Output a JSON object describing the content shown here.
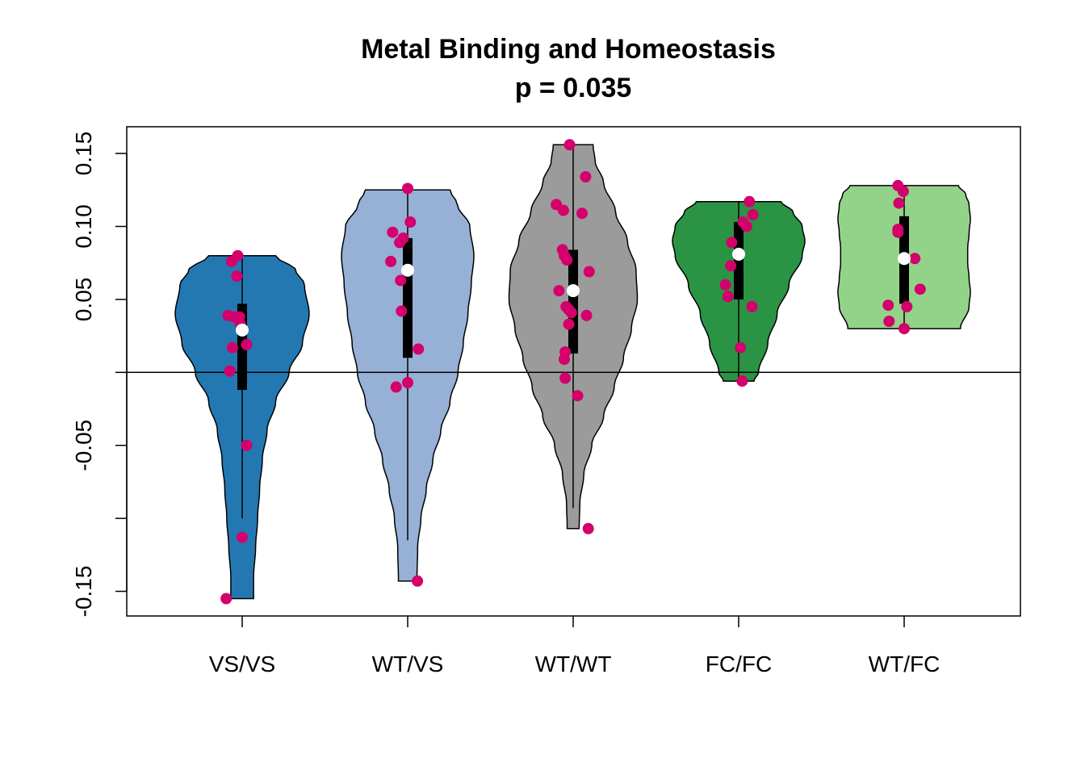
{
  "chart_data": {
    "type": "violin",
    "title": "Metal Binding and Homeostasis",
    "subtitle": "p = 0.035",
    "xlabel": "",
    "ylabel": "",
    "ylim": [
      -0.167,
      0.168
    ],
    "yticks": [
      0.15,
      0.1,
      0.05,
      0.0,
      -0.05,
      -0.1,
      -0.15
    ],
    "ytick_labels": [
      "0.15",
      "0.10",
      "0.05",
      "",
      "-0.05",
      "",
      "-0.15"
    ],
    "reference_line": 0.0,
    "grid": false,
    "point_color": "#d4006b",
    "median_marker_color": "#ffffff",
    "categories": [
      "VS/VS",
      "WT/VS",
      "WT/WT",
      "FC/FC",
      "WT/FC"
    ],
    "groups": [
      {
        "label": "VS/VS",
        "color": "#2478b2",
        "range": [
          -0.155,
          0.08
        ],
        "box": {
          "q1": -0.012,
          "median": 0.029,
          "q3": 0.047,
          "whisker_low": -0.1,
          "whisker_high": 0.08
        },
        "points": [
          [
            -0.005,
            0.08
          ],
          [
            -0.012,
            0.076
          ],
          [
            -0.006,
            0.066
          ],
          [
            -0.016,
            0.039
          ],
          [
            -0.009,
            0.038
          ],
          [
            -0.003,
            0.038
          ],
          [
            -0.002,
            0.033
          ],
          [
            -0.011,
            0.017
          ],
          [
            0.005,
            0.019
          ],
          [
            -0.014,
            0.001
          ],
          [
            0.005,
            -0.05
          ],
          [
            0.0,
            -0.113
          ],
          [
            -0.018,
            -0.155
          ]
        ],
        "density": [
          [
            -0.155,
            0.17
          ],
          [
            -0.14,
            0.17
          ],
          [
            -0.12,
            0.2
          ],
          [
            -0.1,
            0.23
          ],
          [
            -0.08,
            0.26
          ],
          [
            -0.06,
            0.3
          ],
          [
            -0.04,
            0.37
          ],
          [
            -0.02,
            0.5
          ],
          [
            0.0,
            0.7
          ],
          [
            0.02,
            0.9
          ],
          [
            0.04,
            1.0
          ],
          [
            0.06,
            0.93
          ],
          [
            0.07,
            0.8
          ],
          [
            0.08,
            0.5
          ]
        ]
      },
      {
        "label": "WT/VS",
        "color": "#96b0d6",
        "range": [
          -0.143,
          0.125
        ],
        "box": {
          "q1": 0.01,
          "median": 0.07,
          "q3": 0.092,
          "whisker_low": -0.115,
          "whisker_high": 0.125
        },
        "points": [
          [
            0.0,
            0.126
          ],
          [
            0.003,
            0.103
          ],
          [
            -0.017,
            0.096
          ],
          [
            -0.005,
            0.092
          ],
          [
            -0.009,
            0.089
          ],
          [
            -0.019,
            0.076
          ],
          [
            -0.008,
            0.063
          ],
          [
            -0.007,
            0.042
          ],
          [
            0.012,
            0.016
          ],
          [
            0.0,
            -0.007
          ],
          [
            -0.013,
            -0.01
          ],
          [
            0.011,
            -0.143
          ]
        ],
        "density": [
          [
            -0.143,
            0.14
          ],
          [
            -0.12,
            0.15
          ],
          [
            -0.1,
            0.2
          ],
          [
            -0.08,
            0.28
          ],
          [
            -0.06,
            0.38
          ],
          [
            -0.04,
            0.5
          ],
          [
            -0.02,
            0.64
          ],
          [
            0.0,
            0.76
          ],
          [
            0.02,
            0.84
          ],
          [
            0.04,
            0.91
          ],
          [
            0.06,
            0.96
          ],
          [
            0.08,
            1.0
          ],
          [
            0.1,
            0.94
          ],
          [
            0.115,
            0.75
          ],
          [
            0.125,
            0.64
          ]
        ]
      },
      {
        "label": "WT/WT",
        "color": "#9b9b9b",
        "range": [
          -0.107,
          0.156
        ],
        "box": {
          "q1": 0.013,
          "median": 0.056,
          "q3": 0.084,
          "whisker_low": -0.093,
          "whisker_high": 0.156
        },
        "points": [
          [
            -0.004,
            0.156
          ],
          [
            0.014,
            0.134
          ],
          [
            -0.019,
            0.115
          ],
          [
            -0.011,
            0.111
          ],
          [
            0.01,
            0.109
          ],
          [
            -0.012,
            0.084
          ],
          [
            -0.01,
            0.08
          ],
          [
            -0.007,
            0.077
          ],
          [
            0.018,
            0.069
          ],
          [
            -0.016,
            0.056
          ],
          [
            -0.008,
            0.045
          ],
          [
            -0.002,
            0.041
          ],
          [
            0.015,
            0.039
          ],
          [
            -0.005,
            0.043
          ],
          [
            -0.005,
            0.033
          ],
          [
            -0.009,
            0.014
          ],
          [
            -0.01,
            0.009
          ],
          [
            -0.009,
            -0.004
          ],
          [
            0.005,
            -0.016
          ],
          [
            0.017,
            -0.107
          ]
        ],
        "density": [
          [
            -0.107,
            0.09
          ],
          [
            -0.09,
            0.1
          ],
          [
            -0.07,
            0.16
          ],
          [
            -0.05,
            0.28
          ],
          [
            -0.03,
            0.46
          ],
          [
            -0.01,
            0.62
          ],
          [
            0.01,
            0.76
          ],
          [
            0.03,
            0.88
          ],
          [
            0.05,
            0.97
          ],
          [
            0.07,
            0.95
          ],
          [
            0.09,
            0.82
          ],
          [
            0.11,
            0.64
          ],
          [
            0.13,
            0.46
          ],
          [
            0.145,
            0.33
          ],
          [
            0.156,
            0.3
          ]
        ]
      },
      {
        "label": "FC/FC",
        "color": "#2a9444",
        "range": [
          -0.006,
          0.117
        ],
        "box": {
          "q1": 0.05,
          "median": 0.081,
          "q3": 0.103,
          "whisker_low": -0.006,
          "whisker_high": 0.117
        },
        "points": [
          [
            0.012,
            0.117
          ],
          [
            0.016,
            0.108
          ],
          [
            0.005,
            0.103
          ],
          [
            0.009,
            0.1
          ],
          [
            -0.008,
            0.089
          ],
          [
            -0.009,
            0.073
          ],
          [
            -0.015,
            0.06
          ],
          [
            -0.012,
            0.052
          ],
          [
            0.015,
            0.045
          ],
          [
            0.002,
            0.017
          ],
          [
            0.004,
            -0.006
          ]
        ],
        "density": [
          [
            -0.006,
            0.23
          ],
          [
            0.0,
            0.3
          ],
          [
            0.02,
            0.44
          ],
          [
            0.04,
            0.58
          ],
          [
            0.06,
            0.76
          ],
          [
            0.08,
            0.96
          ],
          [
            0.09,
            1.0
          ],
          [
            0.1,
            0.96
          ],
          [
            0.11,
            0.82
          ],
          [
            0.117,
            0.64
          ]
        ]
      },
      {
        "label": "WT/FC",
        "color": "#93d389",
        "range": [
          0.03,
          0.128
        ],
        "box": {
          "q1": 0.047,
          "median": 0.078,
          "q3": 0.107,
          "whisker_low": 0.03,
          "whisker_high": 0.128
        },
        "points": [
          [
            -0.007,
            0.128
          ],
          [
            -0.001,
            0.124
          ],
          [
            -0.006,
            0.116
          ],
          [
            -0.007,
            0.098
          ],
          [
            -0.007,
            0.096
          ],
          [
            0.012,
            0.078
          ],
          [
            0.018,
            0.057
          ],
          [
            -0.018,
            0.046
          ],
          [
            0.003,
            0.045
          ],
          [
            -0.017,
            0.035
          ],
          [
            0.0,
            0.03
          ]
        ],
        "density": [
          [
            0.03,
            0.85
          ],
          [
            0.045,
            0.98
          ],
          [
            0.055,
            1.0
          ],
          [
            0.065,
            0.98
          ],
          [
            0.075,
            0.96
          ],
          [
            0.085,
            0.96
          ],
          [
            0.095,
            0.98
          ],
          [
            0.105,
            1.0
          ],
          [
            0.115,
            0.98
          ],
          [
            0.122,
            0.93
          ],
          [
            0.128,
            0.82
          ]
        ]
      }
    ]
  }
}
